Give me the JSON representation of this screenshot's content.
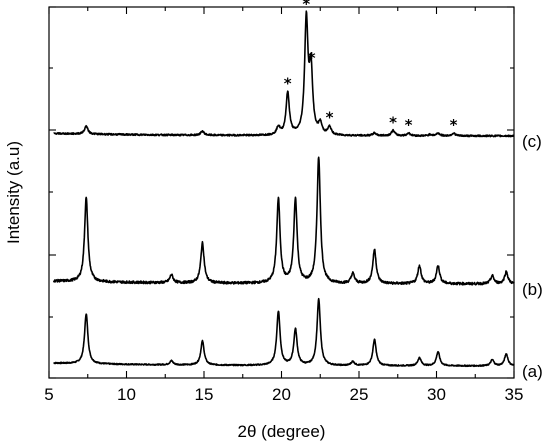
{
  "chart_data": {
    "type": "line",
    "xlabel": "2θ (degree)",
    "ylabel": "Intensity (a.u)",
    "xlim": [
      5,
      35
    ],
    "xticks": [
      "5",
      "10",
      "15",
      "20",
      "25",
      "30",
      "35"
    ],
    "grid": false,
    "legend": "none",
    "series": [
      {
        "name": "(a)",
        "baseline": 0.015,
        "peaks": [
          [
            7.4,
            0.25
          ],
          [
            12.9,
            0.02
          ],
          [
            14.9,
            0.12
          ],
          [
            19.8,
            0.27
          ],
          [
            20.9,
            0.18
          ],
          [
            22.4,
            0.33
          ],
          [
            24.6,
            0.02
          ],
          [
            26.0,
            0.13
          ],
          [
            28.9,
            0.04
          ],
          [
            30.1,
            0.07
          ],
          [
            33.6,
            0.03
          ],
          [
            34.5,
            0.06
          ]
        ]
      },
      {
        "name": "(b)",
        "baseline": 0.015,
        "peaks": [
          [
            7.4,
            0.42
          ],
          [
            12.9,
            0.04
          ],
          [
            14.9,
            0.2
          ],
          [
            19.8,
            0.42
          ],
          [
            20.9,
            0.42
          ],
          [
            22.4,
            0.63
          ],
          [
            24.6,
            0.05
          ],
          [
            26.0,
            0.17
          ],
          [
            28.9,
            0.09
          ],
          [
            30.1,
            0.09
          ],
          [
            33.6,
            0.04
          ],
          [
            34.5,
            0.06
          ]
        ]
      },
      {
        "name": "(c)",
        "baseline": 0.01,
        "peaks": [
          [
            7.4,
            0.03
          ],
          [
            14.9,
            0.015
          ],
          [
            19.8,
            0.03
          ],
          [
            20.4,
            0.16
          ],
          [
            21.6,
            0.43
          ],
          [
            21.9,
            0.24
          ],
          [
            22.5,
            0.04
          ],
          [
            23.1,
            0.03
          ],
          [
            26.0,
            0.01
          ],
          [
            27.2,
            0.02
          ],
          [
            28.2,
            0.01
          ],
          [
            29.6,
            0.005
          ],
          [
            30.1,
            0.01
          ],
          [
            31.1,
            0.01
          ]
        ],
        "annotations": [
          {
            "text": "*",
            "x": 20.4
          },
          {
            "text": "*",
            "x": 21.6
          },
          {
            "text": "*",
            "x": 21.95
          },
          {
            "text": "*",
            "x": 23.1
          },
          {
            "text": "*",
            "x": 27.2
          },
          {
            "text": "*",
            "x": 28.2
          },
          {
            "text": "*",
            "x": 31.1
          }
        ]
      }
    ]
  }
}
